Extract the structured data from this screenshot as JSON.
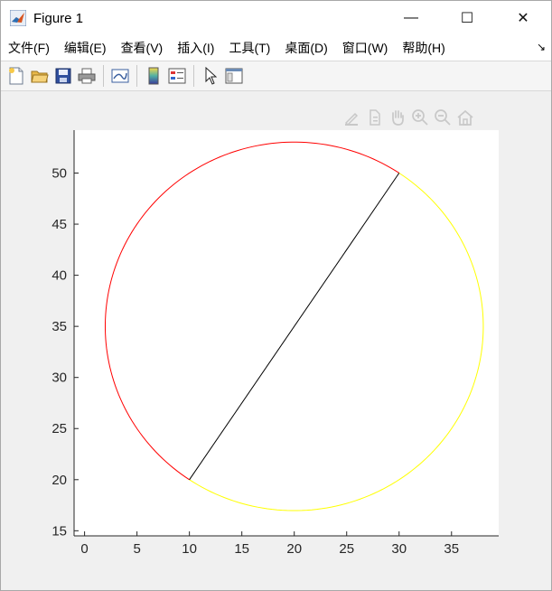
{
  "window": {
    "title": "Figure 1",
    "controls": {
      "minimize": "—",
      "maximize": "☐",
      "close": "✕"
    }
  },
  "menu": {
    "items": [
      {
        "label": "文件(F)"
      },
      {
        "label": "编辑(E)"
      },
      {
        "label": "查看(V)"
      },
      {
        "label": "插入(I)"
      },
      {
        "label": "工具(T)"
      },
      {
        "label": "桌面(D)"
      },
      {
        "label": "窗口(W)"
      },
      {
        "label": "帮助(H)"
      }
    ],
    "overflow_arrow": "↘"
  },
  "toolbar": {
    "icons": [
      "new-figure-icon",
      "open-file-icon",
      "save-icon",
      "print-icon",
      "link-plot-icon",
      "colorbar-icon",
      "legend-icon",
      "pointer-icon",
      "property-editor-icon"
    ]
  },
  "axes_toolbar": {
    "icons": [
      "brush-icon",
      "data-tips-icon",
      "zoom-in-icon",
      "zoom-out-icon",
      "pan-icon",
      "home-icon"
    ]
  },
  "chart_data": {
    "type": "line",
    "title": "",
    "xlabel": "",
    "ylabel": "",
    "xlim": [
      -1,
      39.5
    ],
    "ylim": [
      14.5,
      54.2
    ],
    "xticks": [
      0,
      5,
      10,
      15,
      20,
      25,
      30,
      35
    ],
    "yticks": [
      15,
      20,
      25,
      30,
      35,
      40,
      45,
      50
    ],
    "series": [
      {
        "color": "#ff0000",
        "arc": {
          "center": [
            20,
            35
          ],
          "radius": 18.03,
          "from_point": [
            30,
            50
          ],
          "to_point": [
            10,
            20
          ],
          "direction": "counterclockwise"
        }
      },
      {
        "color": "#ffff00",
        "arc": {
          "center": [
            20,
            35
          ],
          "radius": 18.03,
          "from_point": [
            10,
            20
          ],
          "to_point": [
            30,
            50
          ],
          "direction": "counterclockwise"
        }
      },
      {
        "color": "#000000",
        "x": [
          10,
          30
        ],
        "y": [
          20,
          50
        ]
      }
    ],
    "grid": false
  }
}
